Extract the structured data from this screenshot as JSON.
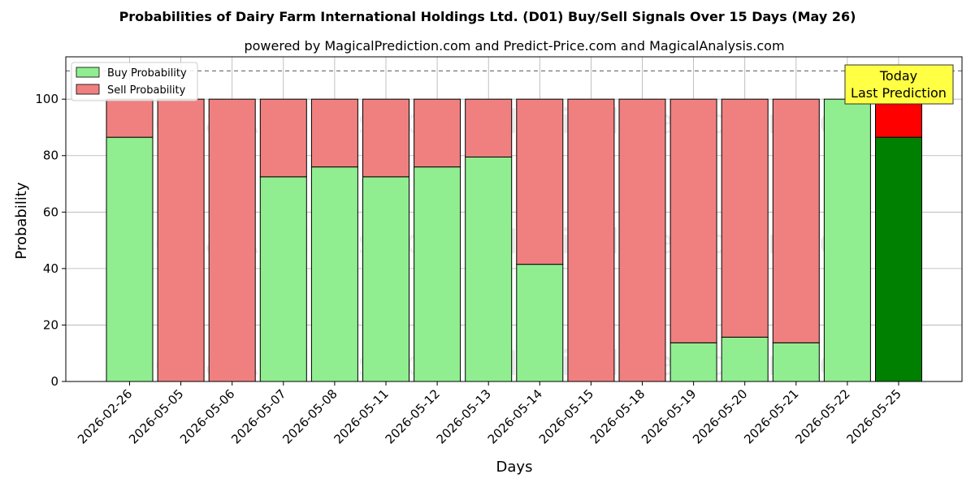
{
  "chart_data": {
    "type": "bar",
    "stacked": true,
    "title": "Probabilities of Dairy Farm International Holdings Ltd. (D01) Buy/Sell Signals Over 15 Days (May 26)",
    "subtitle": "powered by MagicalPrediction.com and Predict-Price.com and MagicalAnalysis.com",
    "xlabel": "Days",
    "ylabel": "Probability",
    "ylim": [
      0,
      115
    ],
    "yticks": [
      0,
      20,
      40,
      60,
      80,
      100
    ],
    "grid": true,
    "legend_placement": "top-left",
    "categories": [
      "2026-02-26",
      "2026-05-05",
      "2026-05-06",
      "2026-05-07",
      "2026-05-08",
      "2026-05-11",
      "2026-05-12",
      "2026-05-13",
      "2026-05-14",
      "2026-05-15",
      "2026-05-18",
      "2026-05-19",
      "2026-05-20",
      "2026-05-21",
      "2026-05-22",
      "2026-05-25"
    ],
    "series": [
      {
        "name": "Buy Probability",
        "values": [
          86.5,
          0,
          0,
          72.5,
          76,
          72.5,
          76,
          79.5,
          41.5,
          0,
          0,
          13.7,
          15.7,
          13.7,
          100,
          86.5
        ]
      },
      {
        "name": "Sell Probability",
        "values": [
          13.5,
          100,
          100,
          27.5,
          24,
          27.5,
          24,
          20.5,
          58.5,
          100,
          100,
          86.3,
          84.3,
          86.3,
          0,
          13.5
        ]
      }
    ],
    "colors": {
      "buy": "#90ee90",
      "sell": "#f08080",
      "buy_highlight": "#008000",
      "sell_highlight": "#ff0000",
      "today_box": "#ffff44"
    },
    "reference_line": 110,
    "annotation": {
      "line1": "Today",
      "line2": "Last Prediction"
    },
    "watermarks": [
      "MagicalAnalysis.com",
      "MagicalPrediction.com"
    ]
  }
}
